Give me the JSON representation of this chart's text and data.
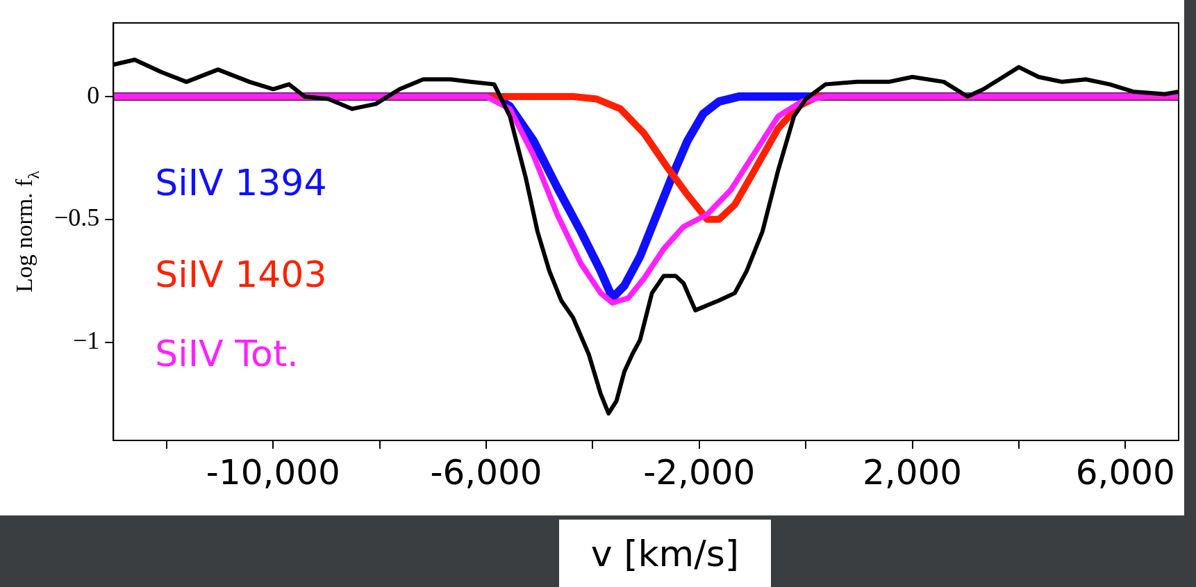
{
  "chart_data": {
    "type": "line",
    "xlabel": "v [km/s]",
    "ylabel": "Log norm. f$_{λ}$",
    "xlim": [
      -13000,
      7000
    ],
    "ylim": [
      -1.4,
      0.3
    ],
    "xticks": [
      {
        "value": -12000,
        "label": null
      },
      {
        "value": -10000,
        "label": "-10,000"
      },
      {
        "value": -8000,
        "label": null
      },
      {
        "value": -6000,
        "label": "-6,000"
      },
      {
        "value": -4000,
        "label": null
      },
      {
        "value": -2000,
        "label": "-2,000"
      },
      {
        "value": 0,
        "label": null
      },
      {
        "value": 2000,
        "label": "2,000"
      },
      {
        "value": 4000,
        "label": null
      },
      {
        "value": 6000,
        "label": "6,000"
      }
    ],
    "yticks": [
      {
        "value": -1,
        "label": "−1"
      },
      {
        "value": -0.5,
        "label": "−0.5"
      },
      0
    ],
    "legend": "left",
    "grid": false,
    "marker": "none",
    "line_style": "solid",
    "series": [
      {
        "name": "SiIV 1394",
        "color": "#1010ff",
        "x": [
          -13000,
          -5852,
          -5556,
          -5111,
          -4667,
          -4222,
          -3852,
          -3630,
          -3407,
          -3111,
          -2815,
          -2519,
          -2222,
          -1926,
          -1630,
          -1259,
          7000
        ],
        "values": [
          0,
          0,
          -0.04,
          -0.18,
          -0.37,
          -0.55,
          -0.71,
          -0.82,
          -0.77,
          -0.65,
          -0.49,
          -0.33,
          -0.18,
          -0.07,
          -0.02,
          0,
          0
        ]
      },
      {
        "name": "SiIV 1403",
        "color": "#ff2000",
        "x": [
          -13000,
          -4370,
          -3926,
          -3481,
          -3037,
          -2593,
          -2222,
          -1852,
          -1630,
          -1333,
          -963,
          -519,
          -148,
          222,
          7000
        ],
        "values": [
          0,
          0,
          -0.01,
          -0.05,
          -0.15,
          -0.29,
          -0.4,
          -0.5,
          -0.5,
          -0.44,
          -0.3,
          -0.13,
          -0.04,
          0,
          0
        ]
      },
      {
        "name": "SiIV Tot.",
        "color": "#ff20ff",
        "x": [
          -13000,
          -6000,
          -5556,
          -5111,
          -4667,
          -4222,
          -3852,
          -3630,
          -3333,
          -3037,
          -2667,
          -2296,
          -1852,
          -1407,
          -963,
          -519,
          -74,
          370,
          7000
        ],
        "values": [
          0,
          0,
          -0.05,
          -0.24,
          -0.48,
          -0.68,
          -0.8,
          -0.84,
          -0.82,
          -0.74,
          -0.62,
          -0.53,
          -0.48,
          -0.38,
          -0.23,
          -0.08,
          -0.02,
          0,
          0
        ]
      },
      {
        "color": "#000000",
        "x": [
          -13000,
          -12600,
          -12100,
          -11630,
          -11037,
          -10444,
          -10000,
          -9704,
          -9407,
          -8963,
          -8519,
          -8074,
          -7630,
          -7185,
          -6667,
          -6296,
          -5852,
          -5556,
          -5259,
          -5037,
          -4815,
          -4593,
          -4370,
          -4074,
          -3852,
          -3704,
          -3556,
          -3407,
          -3259,
          -3111,
          -2889,
          -2667,
          -2444,
          -2296,
          -2074,
          -1852,
          -1630,
          -1333,
          -1111,
          -815,
          -519,
          -222,
          0,
          370,
          963,
          1556,
          2000,
          2593,
          3037,
          3333,
          3778,
          4000,
          4370,
          4815,
          5259,
          5704,
          6148,
          6741,
          7000
        ],
        "values": [
          0.13,
          0.15,
          0.1,
          0.06,
          0.11,
          0.06,
          0.03,
          0.05,
          0,
          -0.01,
          -0.05,
          -0.03,
          0.03,
          0.07,
          0.07,
          0.06,
          0.05,
          -0.08,
          -0.33,
          -0.55,
          -0.71,
          -0.83,
          -0.9,
          -1.05,
          -1.21,
          -1.29,
          -1.24,
          -1.12,
          -1.05,
          -0.99,
          -0.8,
          -0.73,
          -0.73,
          -0.76,
          -0.87,
          -0.85,
          -0.83,
          -0.8,
          -0.71,
          -0.55,
          -0.3,
          -0.08,
          -0.01,
          0.05,
          0.06,
          0.06,
          0.08,
          0.06,
          0,
          0.03,
          0.09,
          0.12,
          0.08,
          0.06,
          0.07,
          0.05,
          0.02,
          0.01,
          0.02
        ]
      }
    ]
  }
}
